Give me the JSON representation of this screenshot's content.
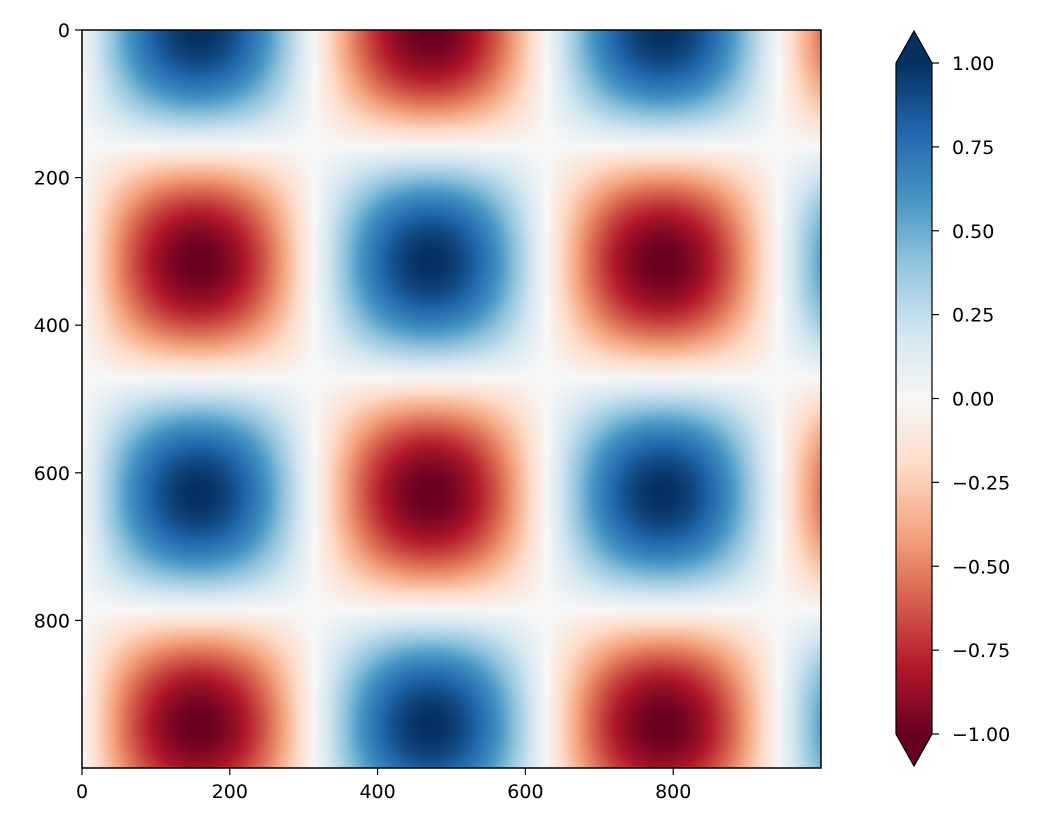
{
  "chart_data": {
    "type": "heatmap",
    "title": "",
    "xlabel": "",
    "ylabel": "",
    "function": "sin(x) * cos(y)",
    "image_size": [
      1000,
      1000
    ],
    "x_period_px": 628.3,
    "y_period_px": 628.3,
    "xlim": [
      0,
      1000
    ],
    "ylim": [
      1000,
      0
    ],
    "xticks": [
      0,
      200,
      400,
      600,
      800
    ],
    "xtick_labels": [
      "0",
      "200",
      "400",
      "600",
      "800"
    ],
    "yticks": [
      0,
      200,
      400,
      600,
      800
    ],
    "ytick_labels": [
      "0",
      "200",
      "400",
      "600",
      "800"
    ],
    "colormap": "RdBu",
    "vmin": -1.0,
    "vmax": 1.0,
    "colorbar": {
      "extend": "both",
      "ticks": [
        1.0,
        0.75,
        0.5,
        0.25,
        0.0,
        -0.25,
        -0.5,
        -0.75,
        -1.0
      ],
      "tick_labels": [
        "1.00",
        "0.75",
        "0.50",
        "0.25",
        "0.00",
        "−0.25",
        "−0.50",
        "−0.75",
        "−1.00"
      ]
    },
    "colors": {
      "max": "#053061",
      "min": "#67001f",
      "mid": "#f7f7f7"
    }
  }
}
